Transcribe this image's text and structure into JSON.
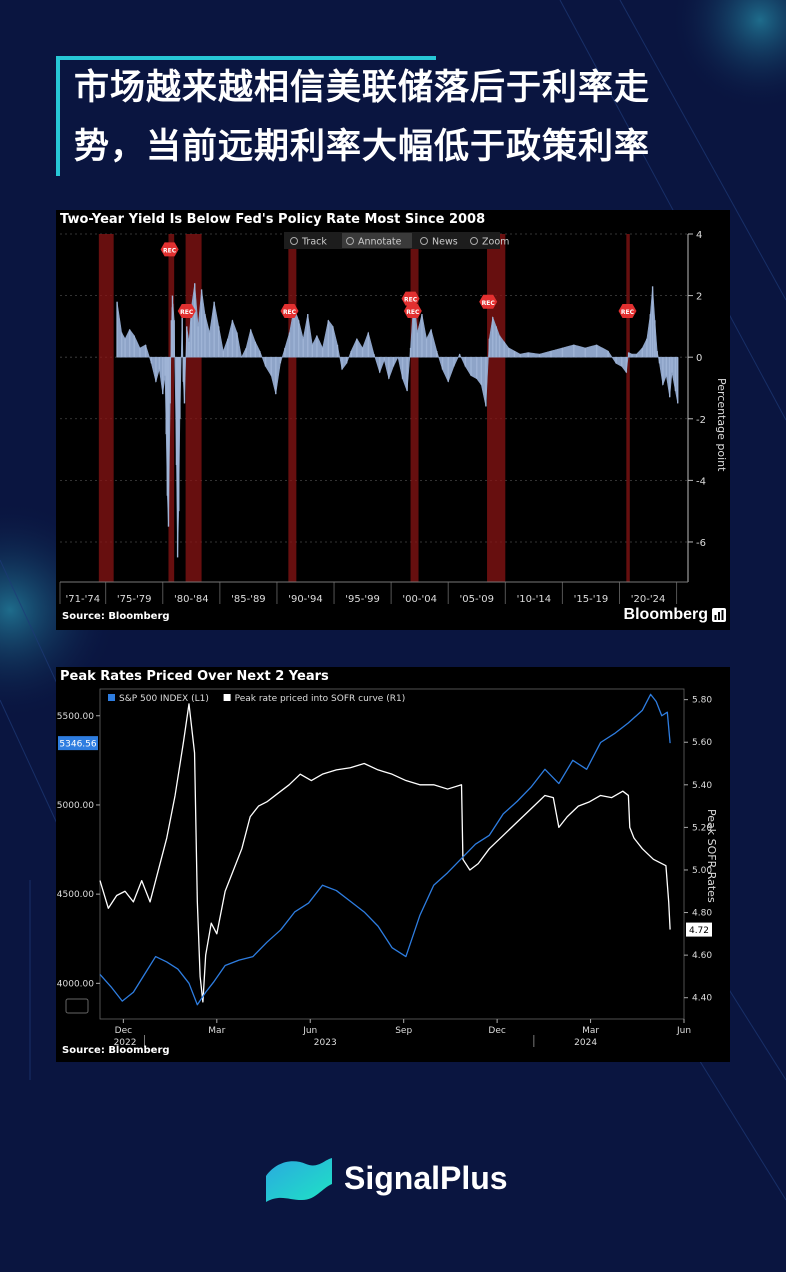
{
  "headline": {
    "line1": "市场越来越相信美联储落后于利率走",
    "line2": "势，当前远期利率大幅低于政策利率"
  },
  "chart1": {
    "title": "Two-Year Yield Is Below Fed's Policy Rate Most Since 2008",
    "toolbar": [
      "Track",
      "Annotate",
      "News",
      "Zoom"
    ],
    "toolbar_icons": [
      "move-icon",
      "pencil-icon",
      "news-icon",
      "zoom-icon"
    ],
    "source": "Source: Bloomberg",
    "brand": "Bloomberg",
    "recession_label": "REC"
  },
  "chart2": {
    "title": "Peak Rates Priced Over Next 2 Years",
    "source": "Source: Bloomberg",
    "last_left_label": "5346.56",
    "last_right_label": "4.72"
  },
  "chart_data": [
    {
      "type": "area",
      "title": "Two-Year Yield Is Below Fed's Policy Rate Most Since 2008",
      "ylabel": "Percentage point",
      "ylim": [
        -7.3,
        4
      ],
      "yticks": [
        4,
        2,
        0,
        -2,
        -4,
        -6
      ],
      "categories": [
        "'71-'74",
        "'75-'79",
        "'80-'84",
        "'85-'89",
        "'90-'94",
        "'95-'99",
        "'00-'04",
        "'05-'09",
        "'10-'14",
        "'15-'19",
        "'20-'24"
      ],
      "recessions": [
        [
          1973.9,
          1975.2
        ],
        [
          1980.0,
          1980.5
        ],
        [
          1981.5,
          1982.9
        ],
        [
          1990.5,
          1991.2
        ],
        [
          2001.2,
          2001.9
        ],
        [
          2007.9,
          2009.5
        ],
        [
          2020.1,
          2020.4
        ]
      ],
      "series": [
        {
          "x": [
            1975.5,
            1975.9,
            1976.2,
            1976.6,
            1977.0,
            1977.5,
            1978.0,
            1978.5,
            1978.9,
            1979.2,
            1979.5,
            1979.7,
            1979.8,
            1979.9,
            1980.0,
            1980.15,
            1980.25,
            1980.35,
            1980.5,
            1980.7,
            1980.8,
            1980.9,
            1981.0,
            1981.2,
            1981.3,
            1981.4,
            1981.6,
            1981.8,
            1982.0,
            1982.3,
            1982.6,
            1982.9,
            1983.2,
            1983.6,
            1984.0,
            1984.4,
            1984.8,
            1985.2,
            1985.6,
            1986.0,
            1986.4,
            1986.8,
            1987.2,
            1987.6,
            1988.0,
            1988.5,
            1989.0,
            1989.4,
            1989.8,
            1990.2,
            1990.6,
            1991.0,
            1991.4,
            1991.8,
            1992.2,
            1992.6,
            1993.0,
            1993.5,
            1994.0,
            1994.4,
            1994.8,
            1995.2,
            1995.6,
            1996.0,
            1996.5,
            1997.0,
            1997.5,
            1998.0,
            1998.5,
            1998.9,
            1999.3,
            1999.7,
            2000.1,
            2000.5,
            2000.9,
            2001.2,
            2001.5,
            2001.8,
            2002.2,
            2002.6,
            2003.0,
            2003.5,
            2004.0,
            2004.5,
            2005.0,
            2005.5,
            2006.0,
            2006.5,
            2007.0,
            2007.4,
            2007.8,
            2008.1,
            2008.4,
            2008.7,
            2009.0,
            2009.4,
            2009.8,
            2010.3,
            2010.8,
            2011.5,
            2012.5,
            2013.5,
            2014.5,
            2015.5,
            2016.5,
            2017.5,
            2018.5,
            2019.2,
            2019.7,
            2020.1,
            2020.3,
            2020.6,
            2021.0,
            2021.5,
            2021.9,
            2022.2,
            2022.4,
            2022.6,
            2022.8,
            2023.0,
            2023.3,
            2023.6,
            2023.9,
            2024.1,
            2024.4,
            2024.6
          ],
          "values": [
            1.8,
            0.8,
            0.6,
            0.9,
            0.7,
            0.3,
            0.4,
            -0.2,
            -0.8,
            -0.4,
            -1.2,
            -0.6,
            -2.5,
            -4.5,
            -5.5,
            -1.5,
            1.2,
            2.0,
            1.2,
            -3.5,
            -6.5,
            -5.0,
            -2.0,
            1.5,
            -0.8,
            -1.5,
            1.0,
            0.5,
            1.6,
            2.4,
            1.0,
            2.2,
            1.4,
            0.8,
            1.8,
            1.0,
            0.2,
            0.6,
            1.2,
            0.8,
            0.0,
            0.3,
            0.9,
            0.5,
            0.2,
            -0.3,
            -0.6,
            -1.2,
            -0.2,
            0.3,
            0.8,
            1.6,
            1.2,
            0.6,
            1.4,
            0.4,
            0.7,
            0.3,
            1.2,
            1.0,
            0.4,
            -0.4,
            -0.2,
            0.2,
            0.6,
            0.3,
            0.8,
            0.1,
            -0.5,
            -0.1,
            -0.7,
            -0.3,
            0.0,
            -0.7,
            -1.1,
            0.3,
            2.0,
            0.8,
            1.4,
            0.6,
            0.9,
            0.2,
            -0.4,
            -0.8,
            -0.3,
            0.1,
            -0.3,
            -0.6,
            -0.7,
            -0.9,
            -1.6,
            0.6,
            1.3,
            1.0,
            0.7,
            0.5,
            0.3,
            0.2,
            0.1,
            0.15,
            0.1,
            0.2,
            0.3,
            0.4,
            0.3,
            0.4,
            0.2,
            -0.2,
            -0.3,
            -0.5,
            0.15,
            0.1,
            0.1,
            0.3,
            0.6,
            1.4,
            2.3,
            1.2,
            0.2,
            -0.2,
            -0.9,
            -0.6,
            -1.3,
            -0.5,
            -1.1,
            -1.5
          ]
        }
      ]
    },
    {
      "type": "line",
      "title": "Peak Rates Priced Over Next 2 Years",
      "xticks": [
        "Dec",
        "Mar",
        "Jun",
        "Sep",
        "Dec",
        "Mar",
        "Jun"
      ],
      "years": [
        "2022",
        "2023",
        "2024"
      ],
      "left_axis": {
        "ylim": [
          3800,
          5650
        ],
        "ticks": [
          4000,
          4500,
          5000,
          5500
        ],
        "tick_labels": [
          "4000.00",
          "4500.00",
          "5000.00",
          "5500.00"
        ]
      },
      "right_axis": {
        "label": "Peak SOFR Rates",
        "ylim": [
          4.3,
          5.85
        ],
        "ticks": [
          4.4,
          4.6,
          4.8,
          5.0,
          5.2,
          5.4,
          5.6,
          5.8
        ],
        "tick_labels": [
          "4.40",
          "4.60",
          "4.80",
          "5.00",
          "5.20",
          "5.40",
          "5.60",
          "5.80"
        ]
      },
      "x_range": [
        0,
        21
      ],
      "series": [
        {
          "name": "Peak rate priced into SOFR curve (R1)",
          "axis": "right",
          "color": "#ffffff",
          "x": [
            0,
            0.3,
            0.6,
            0.9,
            1.2,
            1.5,
            1.8,
            2.1,
            2.4,
            2.7,
            3.0,
            3.2,
            3.4,
            3.5,
            3.6,
            3.7,
            3.8,
            4.0,
            4.2,
            4.5,
            4.8,
            5.1,
            5.4,
            5.7,
            6.0,
            6.4,
            6.8,
            7.2,
            7.6,
            8.0,
            8.5,
            9.0,
            9.5,
            10.0,
            10.5,
            11.0,
            11.5,
            12.0,
            12.5,
            13.0,
            13.05,
            13.3,
            13.6,
            14.0,
            14.4,
            14.8,
            15.2,
            15.6,
            16.0,
            16.3,
            16.5,
            16.8,
            17.2,
            17.6,
            18.0,
            18.4,
            18.8,
            19.0,
            19.05,
            19.2,
            19.5,
            19.9,
            20.2,
            20.35,
            20.45,
            20.5
          ],
          "values": [
            4.95,
            4.82,
            4.88,
            4.9,
            4.85,
            4.95,
            4.85,
            5.0,
            5.15,
            5.35,
            5.6,
            5.78,
            5.55,
            4.85,
            4.5,
            4.38,
            4.6,
            4.75,
            4.7,
            4.9,
            5.0,
            5.1,
            5.25,
            5.3,
            5.32,
            5.36,
            5.4,
            5.45,
            5.42,
            5.45,
            5.47,
            5.48,
            5.5,
            5.47,
            5.45,
            5.42,
            5.4,
            5.4,
            5.38,
            5.4,
            5.05,
            5.0,
            5.03,
            5.1,
            5.15,
            5.2,
            5.25,
            5.3,
            5.35,
            5.34,
            5.2,
            5.25,
            5.3,
            5.32,
            5.35,
            5.34,
            5.37,
            5.35,
            5.2,
            5.15,
            5.1,
            5.05,
            5.03,
            5.02,
            4.85,
            4.72
          ]
        },
        {
          "name": "S&P 500 INDEX (L1)",
          "axis": "left",
          "color": "#2e7de0",
          "x": [
            0,
            0.4,
            0.8,
            1.2,
            1.6,
            2.0,
            2.4,
            2.8,
            3.2,
            3.5,
            3.8,
            4.1,
            4.5,
            5.0,
            5.5,
            6.0,
            6.5,
            7.0,
            7.5,
            8.0,
            8.5,
            9.0,
            9.5,
            10.0,
            10.5,
            11.0,
            11.5,
            12.0,
            12.5,
            13.0,
            13.5,
            14.0,
            14.5,
            15.0,
            15.5,
            16.0,
            16.5,
            17.0,
            17.5,
            18.0,
            18.5,
            19.0,
            19.5,
            19.8,
            20.0,
            20.2,
            20.4,
            20.5
          ],
          "values": [
            4050,
            3980,
            3900,
            3950,
            4050,
            4150,
            4120,
            4080,
            4000,
            3880,
            3950,
            4010,
            4100,
            4130,
            4150,
            4230,
            4300,
            4400,
            4450,
            4550,
            4520,
            4460,
            4400,
            4320,
            4200,
            4150,
            4380,
            4550,
            4620,
            4700,
            4780,
            4830,
            4950,
            5020,
            5100,
            5200,
            5120,
            5250,
            5200,
            5350,
            5400,
            5460,
            5530,
            5620,
            5580,
            5500,
            5520,
            5346.56
          ]
        }
      ]
    }
  ]
}
